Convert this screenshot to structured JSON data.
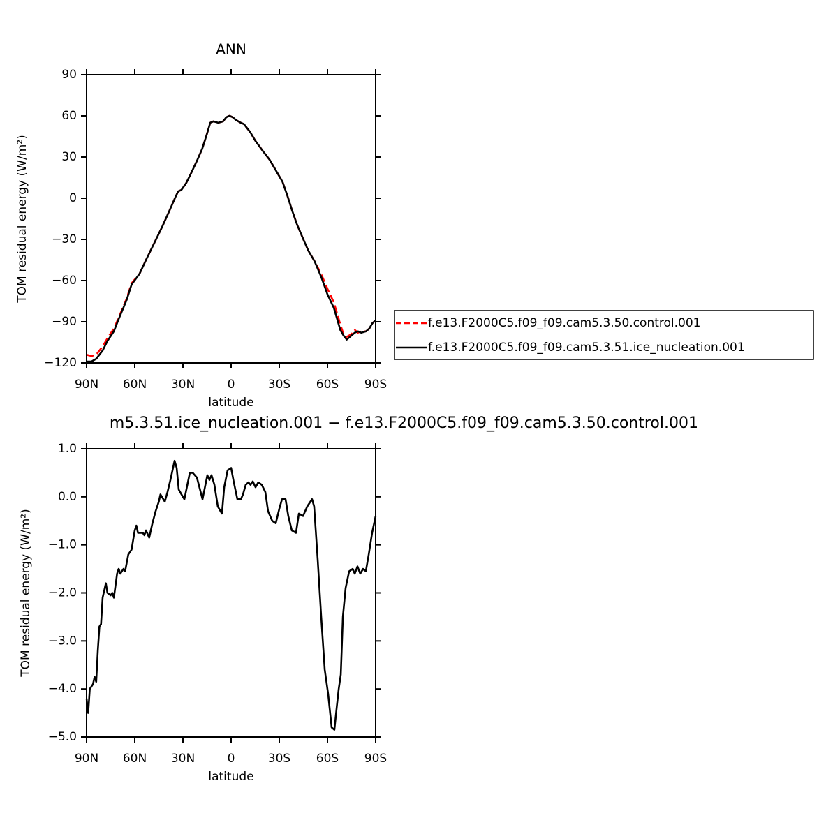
{
  "chart_data": [
    {
      "type": "line",
      "title": "ANN",
      "xlabel": "latitude",
      "ylabel": "TOM residual energy (W/m²)",
      "x": [
        90,
        87,
        84,
        80,
        77,
        73,
        70,
        65,
        62,
        57,
        53,
        48,
        43,
        38,
        35,
        33,
        31,
        28,
        25,
        21,
        18,
        15,
        13,
        11,
        8,
        5,
        3,
        1,
        -1,
        -3,
        -6,
        -8,
        -12,
        -15,
        -20,
        -24,
        -28,
        -32,
        -35,
        -38,
        -41,
        -45,
        -48,
        -52,
        -56,
        -60,
        -64,
        -66,
        -68,
        -70,
        -72,
        -75,
        -77,
        -79,
        -81,
        -84,
        -86,
        -88,
        -90
      ],
      "series": [
        {
          "name": "f.e13.F2000C5.f09_f09.cam5.3.50.control.001",
          "color": "#ff0000",
          "dashed": true,
          "values": [
            -114,
            -115,
            -114,
            -108,
            -102,
            -95,
            -87,
            -73,
            -62,
            -55,
            -45,
            -33,
            -21,
            -8,
            0,
            5,
            6,
            11,
            18,
            28,
            36,
            47,
            55,
            56,
            55,
            56,
            59,
            60,
            59,
            57,
            55,
            54,
            48,
            42,
            34,
            28,
            20,
            12,
            2,
            -9,
            -19,
            -30,
            -38,
            -46,
            -55,
            -66,
            -76,
            -84,
            -92,
            -99,
            -101,
            -99,
            -96,
            -98,
            -97,
            -97,
            -95,
            -91,
            -89
          ]
        },
        {
          "name": "f.e13.F2000C5.f09_f09.cam5.3.51.ice_nucleation.001",
          "color": "#000000",
          "dashed": false,
          "values": [
            -119,
            -119,
            -117,
            -111,
            -104,
            -97,
            -88,
            -74,
            -63,
            -55,
            -45,
            -33,
            -21,
            -8,
            0,
            5,
            6,
            11,
            18,
            28,
            36,
            47,
            55,
            56,
            55,
            56,
            59,
            60,
            59,
            57,
            55,
            54,
            48,
            42,
            34,
            28,
            20,
            12,
            2,
            -9,
            -19,
            -30,
            -38,
            -46,
            -57,
            -70,
            -80,
            -88,
            -96,
            -100,
            -103,
            -100,
            -98,
            -97,
            -98,
            -97,
            -95,
            -91,
            -89
          ]
        }
      ],
      "xlim": [
        90,
        -90
      ],
      "xticks": [
        {
          "value": 90,
          "label": "90N"
        },
        {
          "value": 60,
          "label": "60N"
        },
        {
          "value": 30,
          "label": "30N"
        },
        0,
        {
          "value": -30,
          "label": "30S"
        },
        {
          "value": -60,
          "label": "60S"
        },
        {
          "value": -90,
          "label": "90S"
        }
      ],
      "ylim": [
        -120,
        90
      ],
      "yticks": [
        90,
        60,
        30,
        0,
        {
          "value": -30,
          "label": "−30"
        },
        {
          "value": -60,
          "label": "−60"
        },
        {
          "value": -90,
          "label": "−90"
        },
        {
          "value": -120,
          "label": "−120"
        }
      ],
      "legend": "outside-right"
    },
    {
      "type": "line",
      "title": "m5.3.51.ice_nucleation.001 − f.e13.F2000C5.f09_f09.cam5.3.50.control.001",
      "xlabel": "latitude",
      "ylabel": "TOM residual energy (W/m²)",
      "x": [
        90,
        89,
        88,
        86,
        85,
        84,
        83,
        82,
        81,
        80,
        78,
        77,
        75,
        74,
        73,
        71,
        70,
        69,
        67,
        66,
        64,
        62,
        60,
        59,
        58,
        55,
        54,
        53,
        51,
        49,
        47,
        45,
        44,
        41.3,
        39.6,
        37.8,
        35.2,
        33.9,
        32.6,
        30.9,
        29.1,
        25.7,
        23.9,
        21.3,
        17.8,
        14.8,
        13.5,
        12.2,
        10.4,
        8.3,
        5.7,
        4.3,
        2.2,
        0,
        -1.7,
        -3.9,
        -6.1,
        -7.4,
        -9.1,
        -10.8,
        -12.1,
        -13.5,
        -15.2,
        -16.9,
        -19.1,
        -21.3,
        -23,
        -25.6,
        -27.8,
        -30,
        -31.7,
        -33.9,
        -35.6,
        -37.8,
        -40.4,
        -42.2,
        -44.8,
        -47.4,
        -50.4,
        -51.7,
        -53.9,
        -56.1,
        -58.3,
        -60.4,
        -62.6,
        -64.3,
        -65.7,
        -67,
        -68.3,
        -69.6,
        -71.3,
        -73.5,
        -75.7,
        -77,
        -78.7,
        -80.4,
        -82.2,
        -83.9,
        -85.7,
        -87.8,
        -90
      ],
      "series": [
        {
          "color": "#000000",
          "dashed": false,
          "values": [
            -4.2,
            -4.5,
            -4.0,
            -3.9,
            -3.75,
            -3.85,
            -3.2,
            -2.7,
            -2.65,
            -2.1,
            -1.8,
            -2.0,
            -2.05,
            -2.0,
            -2.1,
            -1.6,
            -1.5,
            -1.6,
            -1.5,
            -1.55,
            -1.2,
            -1.1,
            -0.7,
            -0.6,
            -0.75,
            -0.75,
            -0.8,
            -0.7,
            -0.85,
            -0.55,
            -0.3,
            -0.1,
            0.05,
            -0.1,
            0.1,
            0.35,
            0.75,
            0.6,
            0.15,
            0.05,
            -0.05,
            0.5,
            0.5,
            0.4,
            -0.05,
            0.45,
            0.35,
            0.45,
            0.25,
            -0.2,
            -0.35,
            0.2,
            0.55,
            0.6,
            0.3,
            -0.05,
            -0.05,
            0.05,
            0.25,
            0.3,
            0.25,
            0.32,
            0.2,
            0.3,
            0.25,
            0.1,
            -0.3,
            -0.5,
            -0.55,
            -0.25,
            -0.05,
            -0.05,
            -0.4,
            -0.7,
            -0.75,
            -0.35,
            -0.4,
            -0.2,
            -0.05,
            -0.2,
            -1.3,
            -2.5,
            -3.6,
            -4.1,
            -4.8,
            -4.85,
            -4.4,
            -4.0,
            -3.7,
            -2.5,
            -1.9,
            -1.55,
            -1.5,
            -1.6,
            -1.45,
            -1.6,
            -1.5,
            -1.55,
            -1.2,
            -0.75,
            -0.4
          ]
        }
      ],
      "xlim": [
        90,
        -90
      ],
      "xticks": [
        {
          "value": 90,
          "label": "90N"
        },
        {
          "value": 60,
          "label": "60N"
        },
        {
          "value": 30,
          "label": "30N"
        },
        0,
        {
          "value": -30,
          "label": "30S"
        },
        {
          "value": -60,
          "label": "60S"
        },
        {
          "value": -90,
          "label": "90S"
        }
      ],
      "ylim": [
        -5,
        1
      ],
      "yticks": [
        {
          "value": 1,
          "label": "1.0"
        },
        {
          "value": 0,
          "label": "0.0"
        },
        {
          "value": -1,
          "label": "−1.0"
        },
        {
          "value": -2,
          "label": "−2.0"
        },
        {
          "value": -3,
          "label": "−3.0"
        },
        {
          "value": -4,
          "label": "−4.0"
        },
        {
          "value": -5,
          "label": "−5.0"
        }
      ]
    }
  ]
}
